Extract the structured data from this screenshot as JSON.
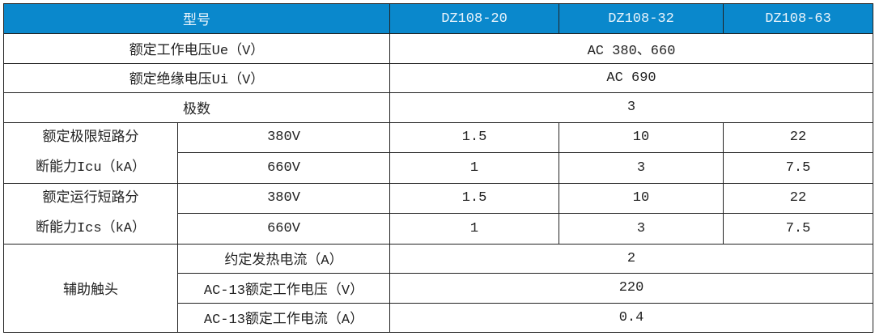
{
  "header": {
    "model_label": "型号",
    "models": [
      "DZ108-20",
      "DZ108-32",
      "DZ108-63"
    ]
  },
  "rows": {
    "ue": {
      "label": "额定工作电压Ue（V）",
      "value": "AC 380、660"
    },
    "ui": {
      "label": "额定绝缘电压Ui（V）",
      "value": "AC 690"
    },
    "poles": {
      "label": "极数",
      "value": "3"
    },
    "icu": {
      "label_line1": "额定极限短路分",
      "label_line2": "断能力Icu（kA）",
      "sub": [
        {
          "voltage": "380V",
          "values": [
            "1.5",
            "10",
            "22"
          ]
        },
        {
          "voltage": "660V",
          "values": [
            "1",
            "3",
            "7.5"
          ]
        }
      ]
    },
    "ics": {
      "label_line1": "额定运行短路分",
      "label_line2": "断能力Ics（kA）",
      "sub": [
        {
          "voltage": "380V",
          "values": [
            "1.5",
            "10",
            "22"
          ]
        },
        {
          "voltage": "660V",
          "values": [
            "1",
            "3",
            "7.5"
          ]
        }
      ]
    },
    "aux": {
      "label": "辅助触头",
      "sub": [
        {
          "label": "约定发热电流（A）",
          "value": "2"
        },
        {
          "label": "AC-13额定工作电压（V）",
          "value": "220"
        },
        {
          "label": "AC-13额定工作电流（A）",
          "value": "0.4"
        }
      ]
    }
  },
  "colors": {
    "header_bg": "#0a88cc",
    "border": "#222222"
  }
}
